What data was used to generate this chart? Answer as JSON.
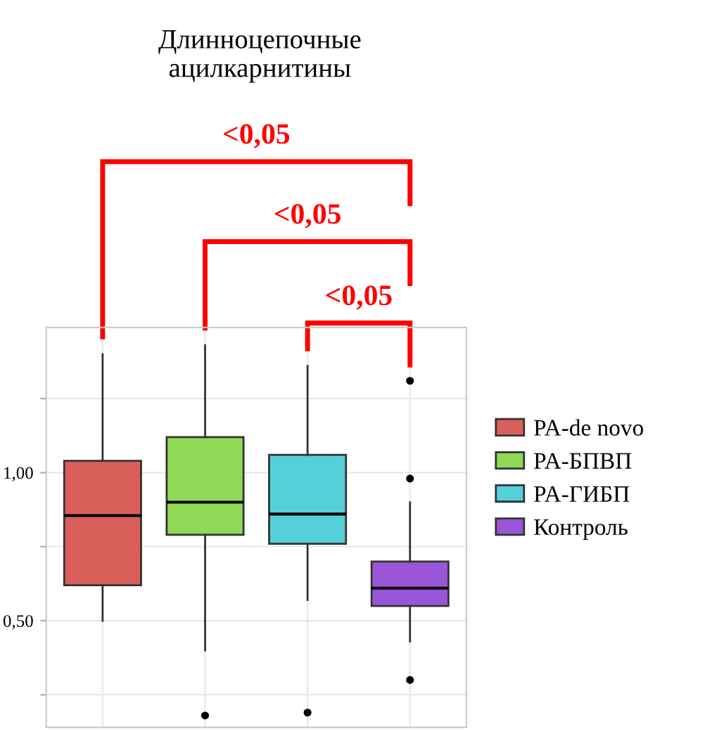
{
  "chart_data": {
    "type": "box",
    "title": "Длинноцепочные\nацилкарнитины",
    "categories": [
      null,
      null,
      null,
      null
    ],
    "series": [
      {
        "name": "PA-de novo",
        "color": "#d9605a",
        "boxes": [
          {
            "low": 0.5,
            "q1": 0.62,
            "median": 0.855,
            "q3": 1.04,
            "high": 1.4
          },
          null,
          null,
          null
        ]
      },
      {
        "name": "PA-БПВП",
        "color": "#8fd957",
        "boxes": [
          null,
          {
            "low": 0.4,
            "q1": 0.79,
            "median": 0.9,
            "q3": 1.12,
            "high": 1.43,
            "outliers": [
              0.18
            ]
          },
          null,
          null
        ]
      },
      {
        "name": "PA-ГИБП",
        "color": "#55d0d8",
        "boxes": [
          null,
          null,
          {
            "low": 0.57,
            "q1": 0.76,
            "median": 0.86,
            "q3": 1.06,
            "high": 1.36,
            "outliers": [
              0.19
            ]
          },
          null
        ]
      },
      {
        "name": "Контроль",
        "color": "#9b55d8",
        "boxes": [
          null,
          null,
          null,
          {
            "low": 0.43,
            "q1": 0.55,
            "median": 0.61,
            "q3": 0.7,
            "high": 0.9,
            "outliers": [
              1.31,
              0.98,
              0.3
            ]
          }
        ]
      }
    ],
    "ylim": [
      0.14,
      1.49
    ],
    "yticks": [
      {
        "value": 0.25,
        "label": null
      },
      {
        "value": 0.5,
        "label": "0,50"
      },
      {
        "value": 0.75,
        "label": null
      },
      {
        "value": 1.0,
        "label": "1,00"
      },
      {
        "value": 1.25,
        "label": null
      }
    ],
    "tick_labels": "y",
    "grid": true,
    "legend": "right",
    "annotations": [
      "<0,05",
      "<0,05",
      "<0,05"
    ]
  }
}
